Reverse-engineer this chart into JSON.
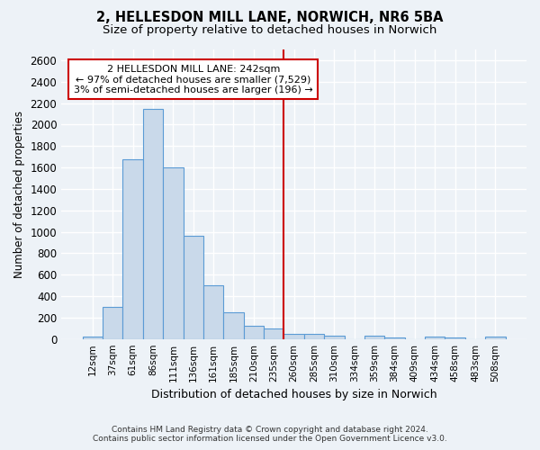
{
  "title": "2, HELLESDON MILL LANE, NORWICH, NR6 5BA",
  "subtitle": "Size of property relative to detached houses in Norwich",
  "xlabel": "Distribution of detached houses by size in Norwich",
  "ylabel": "Number of detached properties",
  "footer_line1": "Contains HM Land Registry data © Crown copyright and database right 2024.",
  "footer_line2": "Contains public sector information licensed under the Open Government Licence v3.0.",
  "bar_labels": [
    "12sqm",
    "37sqm",
    "61sqm",
    "86sqm",
    "111sqm",
    "136sqm",
    "161sqm",
    "185sqm",
    "210sqm",
    "235sqm",
    "260sqm",
    "285sqm",
    "310sqm",
    "334sqm",
    "359sqm",
    "384sqm",
    "409sqm",
    "434sqm",
    "458sqm",
    "483sqm",
    "508sqm"
  ],
  "bar_values": [
    25,
    300,
    1680,
    2150,
    1600,
    960,
    505,
    250,
    125,
    100,
    50,
    50,
    30,
    0,
    35,
    15,
    0,
    25,
    10,
    0,
    25
  ],
  "bar_color": "#c9d9ea",
  "bar_edgecolor": "#5b9bd5",
  "ylim": [
    0,
    2700
  ],
  "yticks": [
    0,
    200,
    400,
    600,
    800,
    1000,
    1200,
    1400,
    1600,
    1800,
    2000,
    2200,
    2400,
    2600
  ],
  "vline_x": 9.5,
  "vline_color": "#cc0000",
  "annotation_title": "2 HELLESDON MILL LANE: 242sqm",
  "annotation_line1": "← 97% of detached houses are smaller (7,529)",
  "annotation_line2": "3% of semi-detached houses are larger (196) →",
  "annotation_box_color": "#ffffff",
  "annotation_box_edgecolor": "#cc0000",
  "background_color": "#edf2f7",
  "grid_color": "#ffffff",
  "title_fontsize": 10.5,
  "subtitle_fontsize": 9.5
}
